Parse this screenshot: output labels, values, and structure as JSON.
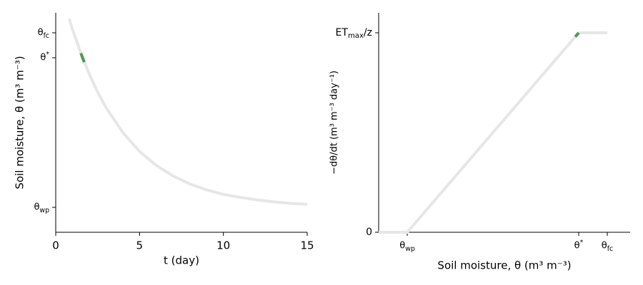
{
  "chart_data": [
    {
      "type": "line",
      "xlabel": "t (day)",
      "ylabel": "Soil moisture, θ (m³ m⁻³)",
      "series": [
        {
          "color": "#e6e6e6",
          "x": [
            0.8,
            1,
            1.5,
            2,
            2.5,
            3,
            4,
            5,
            6,
            7,
            8,
            9,
            10,
            11,
            12,
            13,
            14,
            15
          ],
          "values": [
            0.478,
            0.457,
            0.409,
            0.367,
            0.331,
            0.3,
            0.25,
            0.212,
            0.184,
            0.163,
            0.147,
            0.135,
            0.126,
            0.12,
            0.115,
            0.111,
            0.108,
            0.106
          ]
        },
        {
          "color": "#4c9a4c",
          "x": [
            1.5,
            1.6,
            1.7
          ],
          "values": [
            0.409,
            0.4,
            0.391
          ]
        }
      ],
      "xlim": [
        0,
        15
      ],
      "xticks": [
        0,
        5,
        10,
        15
      ],
      "ylim": [
        0.05,
        0.49
      ],
      "yticks": [
        {
          "value": 0.1,
          "label": "θwp"
        },
        {
          "value": 0.4,
          "label": "θ*"
        },
        {
          "value": 0.45,
          "label": "θfc"
        }
      ],
      "grid": false
    },
    {
      "type": "line",
      "xlabel": "Soil moisture, θ (m³ m⁻³)",
      "ylabel": "−dθ/dt (m³ m⁻³ day⁻¹)",
      "series": [
        {
          "color": "#e6e6e6",
          "x": [
            0.05,
            0.1,
            0.4,
            0.45
          ],
          "values": [
            0,
            0,
            1,
            1
          ]
        },
        {
          "color": "#4c9a4c",
          "x": [
            0.394,
            0.4
          ],
          "values": [
            0.98,
            1
          ]
        }
      ],
      "xlim": [
        0.05,
        0.49
      ],
      "xticks": [
        {
          "value": 0.1,
          "label": "θwp"
        },
        {
          "value": 0.4,
          "label": "θ*"
        },
        {
          "value": 0.45,
          "label": "θfc"
        }
      ],
      "ylim": [
        0,
        1.1
      ],
      "yticks": [
        0,
        {
          "value": 1,
          "label": "ETmax/z"
        }
      ],
      "grid": false
    }
  ]
}
